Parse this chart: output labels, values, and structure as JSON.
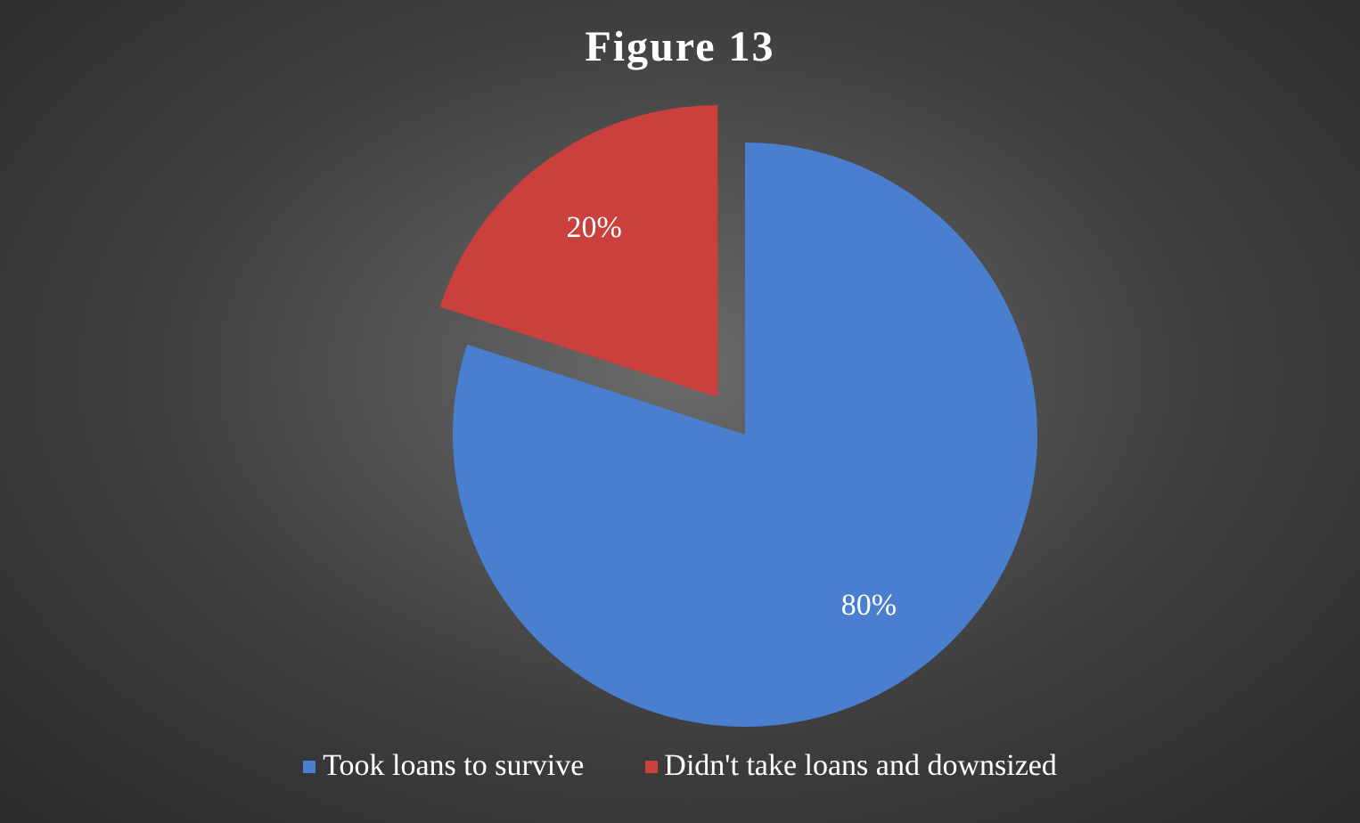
{
  "chart_data": {
    "type": "pie",
    "title": "Figure 13",
    "categories": [
      "Took loans to survive",
      "Didn't take loans and downsized"
    ],
    "values": [
      80,
      20
    ],
    "colors": [
      "#4a7fd0",
      "#c9403c"
    ],
    "value_labels": [
      "80%",
      "20%"
    ],
    "legend": "bottom"
  }
}
